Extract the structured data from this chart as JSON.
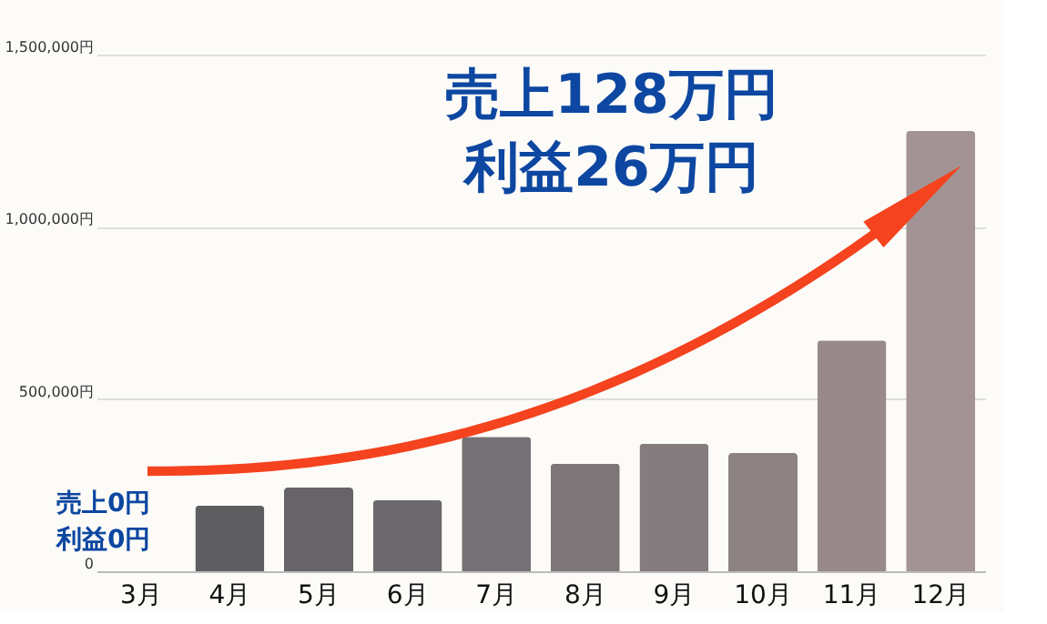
{
  "chart_data": {
    "type": "bar",
    "categories": [
      "3月",
      "4月",
      "5月",
      "6月",
      "7月",
      "8月",
      "9月",
      "10月",
      "11月",
      "12月"
    ],
    "values": [
      0,
      190000,
      243000,
      206000,
      390000,
      312000,
      370000,
      343000,
      670000,
      1278000
    ],
    "colors": [
      "#5b5a5c",
      "#5e5d5f",
      "#666467",
      "#6b696c",
      "#757174",
      "#7d7679",
      "#857c7f",
      "#8d8284",
      "#98898a",
      "#a49394"
    ],
    "ylim": [
      0,
      1500000
    ],
    "yticks": [
      {
        "value": 0,
        "label": "0"
      },
      {
        "value": 500000,
        "label": "500,000円"
      },
      {
        "value": 1000000,
        "label": "1,000,000円"
      },
      {
        "value": 1500000,
        "label": "1,500,000円"
      }
    ],
    "grid": "y",
    "annotations": [
      "売上128万円",
      "利益26万円",
      "売上0円",
      "利益0円"
    ]
  }
}
